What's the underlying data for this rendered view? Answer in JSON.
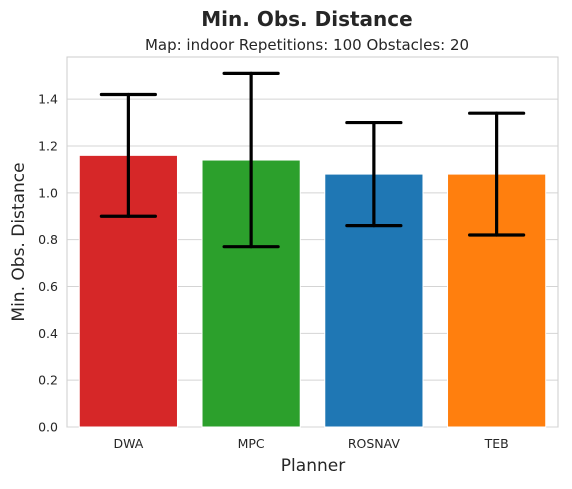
{
  "chart_data": {
    "type": "bar",
    "title": "Min. Obs. Distance",
    "subtitle": "Map: indoor Repetitions: 100 Obstacles: 20",
    "xlabel": "Planner",
    "ylabel": "Min. Obs. Distance",
    "ylim": [
      0,
      1.58
    ],
    "yticks": [
      "0.0",
      "0.2",
      "0.4",
      "0.6",
      "0.8",
      "1.0",
      "1.2",
      "1.4"
    ],
    "grid": true,
    "legend": "none",
    "categories": [
      "DWA",
      "MPC",
      "ROSNAV",
      "TEB"
    ],
    "values": [
      1.16,
      1.14,
      1.08,
      1.08
    ],
    "error_low": [
      0.9,
      0.77,
      0.86,
      0.82
    ],
    "error_high": [
      1.42,
      1.51,
      1.3,
      1.34
    ],
    "colors": [
      "#d62728",
      "#2ca02c",
      "#1f77b4",
      "#ff7f0e"
    ]
  }
}
